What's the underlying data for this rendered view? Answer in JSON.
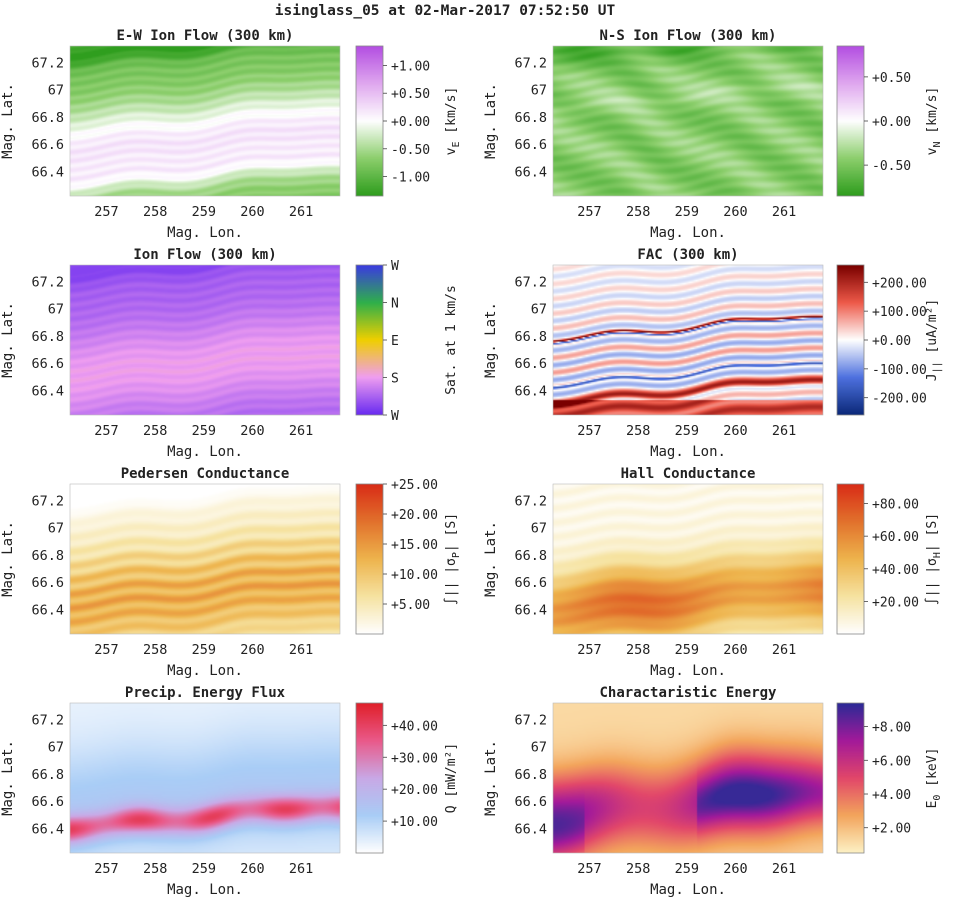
{
  "figure_title": "isinglass_05 at 02-Mar-2017 07:52:50 UT",
  "x_label": "Mag. Lon.",
  "y_label": "Mag. Lat.",
  "x_tick_labels": [
    "257",
    "258",
    "259",
    "260",
    "261"
  ],
  "y_tick_labels": [
    "67.2",
    "67",
    "66.8",
    "66.6",
    "66.4"
  ],
  "chart_data": [
    {
      "type": "heatmap",
      "id": "ew_flow",
      "title": "E-W Ion Flow (300 km)",
      "xlabel": "Mag. Lon.",
      "ylabel": "Mag. Lat.",
      "xlim": [
        256.25,
        261.8
      ],
      "ylim": [
        66.22,
        67.32
      ],
      "xticks": [
        257,
        258,
        259,
        260,
        261
      ],
      "yticks": [
        67.2,
        67,
        66.8,
        66.6,
        66.4
      ],
      "colorbar": {
        "label_main": "v",
        "label_sub": "E",
        "label_unit": " [km/s]",
        "ticks": [
          "+1.00",
          "+0.50",
          "+0.00",
          "-0.50",
          "-1.00"
        ],
        "tick_values": [
          1.0,
          0.5,
          0.0,
          -0.5,
          -1.0
        ],
        "range": [
          -1.35,
          1.35
        ],
        "colors": [
          "#2f9e1e",
          "#8dcf6d",
          "#ffffff",
          "#e0a8ef",
          "#b44fe2"
        ]
      }
    },
    {
      "type": "heatmap",
      "id": "ns_flow",
      "title": "N-S Ion Flow (300 km)",
      "xlabel": "Mag. Lon.",
      "ylabel": "Mag. Lat.",
      "xlim": [
        256.25,
        261.8
      ],
      "ylim": [
        66.22,
        67.32
      ],
      "xticks": [
        257,
        258,
        259,
        260,
        261
      ],
      "yticks": [
        67.2,
        67,
        66.8,
        66.6,
        66.4
      ],
      "colorbar": {
        "label_main": "v",
        "label_sub": "N",
        "label_unit": " [km/s]",
        "ticks": [
          "+0.50",
          "+0.00",
          "-0.50"
        ],
        "tick_values": [
          0.5,
          0.0,
          -0.5
        ],
        "range": [
          -0.85,
          0.85
        ],
        "colors": [
          "#2f9e1e",
          "#8dcf6d",
          "#ffffff",
          "#e0a8ef",
          "#b44fe2"
        ]
      }
    },
    {
      "type": "heatmap",
      "id": "flow_dir",
      "title": "Ion Flow (300 km)",
      "xlabel": "Mag. Lon.",
      "ylabel": "Mag. Lat.",
      "xlim": [
        256.25,
        261.8
      ],
      "ylim": [
        66.22,
        67.32
      ],
      "xticks": [
        257,
        258,
        259,
        260,
        261
      ],
      "yticks": [
        67.2,
        67,
        66.8,
        66.6,
        66.4
      ],
      "colorbar": {
        "label_main": "Sat. at 1 km/s",
        "label_sub": "",
        "label_unit": "",
        "ticks": [
          "W",
          "N",
          "E",
          "S",
          "W"
        ],
        "tick_values": [
          4,
          3,
          2,
          1,
          0
        ],
        "range": [
          0,
          4
        ],
        "colors": [
          "#6a2cf0",
          "#ef9ef0",
          "#f0d000",
          "#2fb04a",
          "#3b3ce0"
        ]
      }
    },
    {
      "type": "heatmap",
      "id": "fac",
      "title": "FAC (300 km)",
      "xlabel": "Mag. Lon.",
      "ylabel": "Mag. Lat.",
      "xlim": [
        256.25,
        261.8
      ],
      "ylim": [
        66.22,
        67.32
      ],
      "xticks": [
        257,
        258,
        259,
        260,
        261
      ],
      "yticks": [
        67.2,
        67,
        66.8,
        66.6,
        66.4
      ],
      "colorbar": {
        "label_main": "J",
        "label_sub": "||",
        "label_unit": "  [uA/m²]",
        "ticks": [
          "+200.00",
          "+100.00",
          "+0.00",
          "-100.00",
          "-200.00"
        ],
        "tick_values": [
          200,
          100,
          0,
          -100,
          -200
        ],
        "range": [
          -260,
          260
        ],
        "colors": [
          "#0c2a7a",
          "#4f72e0",
          "#ffffff",
          "#ee5a4a",
          "#7a0000"
        ]
      }
    },
    {
      "type": "heatmap",
      "id": "pedersen",
      "title": "Pedersen Conductance",
      "xlabel": "Mag. Lon.",
      "ylabel": "Mag. Lat.",
      "xlim": [
        256.25,
        261.8
      ],
      "ylim": [
        66.22,
        67.32
      ],
      "xticks": [
        257,
        258,
        259,
        260,
        261
      ],
      "yticks": [
        67.2,
        67,
        66.8,
        66.6,
        66.4
      ],
      "colorbar": {
        "label_main": "∫|| |σ",
        "label_sub": "P",
        "label_unit": "| [S]",
        "ticks": [
          "+25.00",
          "+20.00",
          "+15.00",
          "+10.00",
          "+5.00"
        ],
        "tick_values": [
          25,
          20,
          15,
          10,
          5
        ],
        "range": [
          0,
          25
        ],
        "colors": [
          "#ffffff",
          "#f6e3a1",
          "#eeb44d",
          "#e2722d",
          "#d92d17"
        ]
      }
    },
    {
      "type": "heatmap",
      "id": "hall",
      "title": "Hall Conductance",
      "xlabel": "Mag. Lon.",
      "ylabel": "Mag. Lat.",
      "xlim": [
        256.25,
        261.8
      ],
      "ylim": [
        66.22,
        67.32
      ],
      "xticks": [
        257,
        258,
        259,
        260,
        261
      ],
      "yticks": [
        67.2,
        67,
        66.8,
        66.6,
        66.4
      ],
      "colorbar": {
        "label_main": "∫|| |σ",
        "label_sub": "H",
        "label_unit": "| [S]",
        "ticks": [
          "+80.00",
          "+60.00",
          "+40.00",
          "+20.00"
        ],
        "tick_values": [
          80,
          60,
          40,
          20
        ],
        "range": [
          0,
          92
        ],
        "colors": [
          "#ffffff",
          "#f6e3a1",
          "#eeb44d",
          "#e2722d",
          "#d92d17"
        ]
      }
    },
    {
      "type": "heatmap",
      "id": "energy_flux",
      "title": "Precip. Energy Flux",
      "xlabel": "Mag. Lon.",
      "ylabel": "Mag. Lat.",
      "xlim": [
        256.25,
        261.8
      ],
      "ylim": [
        66.22,
        67.32
      ],
      "xticks": [
        257,
        258,
        259,
        260,
        261
      ],
      "yticks": [
        67.2,
        67,
        66.8,
        66.6,
        66.4
      ],
      "colorbar": {
        "label_main": "Q",
        "label_sub": "",
        "label_unit": " [mW/m²]",
        "ticks": [
          "+40.00",
          "+30.00",
          "+20.00",
          "+10.00"
        ],
        "tick_values": [
          40,
          30,
          20,
          10
        ],
        "range": [
          0,
          47
        ],
        "colors": [
          "#ffffff",
          "#a9cdf6",
          "#c9a9e6",
          "#ea5a8a",
          "#e0202a"
        ]
      }
    },
    {
      "type": "heatmap",
      "id": "char_energy",
      "title": "Charactaristic Energy",
      "xlabel": "Mag. Lon.",
      "ylabel": "Mag. Lat.",
      "xlim": [
        256.25,
        261.8
      ],
      "ylim": [
        66.22,
        67.32
      ],
      "xticks": [
        257,
        258,
        259,
        260,
        261
      ],
      "yticks": [
        67.2,
        67,
        66.8,
        66.6,
        66.4
      ],
      "colorbar": {
        "label_main": "E",
        "label_sub": "0",
        "label_unit": " [keV]",
        "ticks": [
          "+8.00",
          "+6.00",
          "+4.00",
          "+2.00"
        ],
        "tick_values": [
          8,
          6,
          4,
          2
        ],
        "range": [
          0.5,
          9.4
        ],
        "colors": [
          "#fdf1c4",
          "#f3a55c",
          "#e2476a",
          "#a31a9a",
          "#2c2a96"
        ]
      }
    }
  ]
}
